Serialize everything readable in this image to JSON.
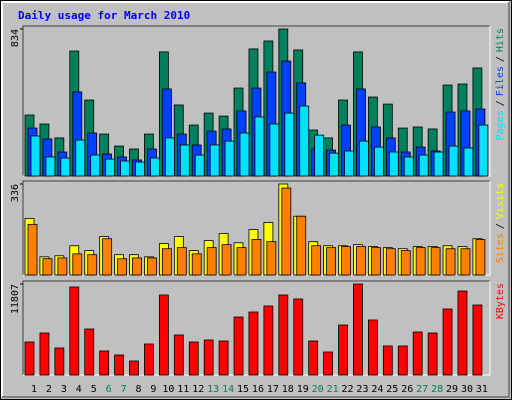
{
  "legend_separator": "/",
  "chart_data": [
    {
      "type": "bar",
      "title": "Daily usage for March 2010",
      "ylim": [
        0,
        834
      ],
      "yticks": [
        834
      ],
      "series": [
        {
          "name": "Hits",
          "color": "#00805c",
          "values": [
            346,
            295,
            216,
            709,
            431,
            238,
            170,
            153,
            238,
            704,
            403,
            289,
            357,
            340,
            499,
            721,
            766,
            834,
            715,
            261,
            216,
            431,
            704,
            448,
            408,
            272,
            278,
            267,
            516,
            522,
            613
          ]
        },
        {
          "name": "Files",
          "color": "#0040ff",
          "values": [
            272,
            210,
            136,
            477,
            244,
            125,
            108,
            91,
            153,
            494,
            238,
            176,
            255,
            267,
            369,
            499,
            590,
            652,
            528,
            153,
            147,
            289,
            494,
            278,
            216,
            136,
            164,
            142,
            363,
            369,
            380
          ]
        },
        {
          "name": "Pages",
          "color": "#00e0ff",
          "values": [
            227,
            108,
            102,
            204,
            119,
            96,
            85,
            79,
            102,
            216,
            176,
            119,
            176,
            198,
            244,
            335,
            295,
            357,
            397,
            232,
            130,
            142,
            198,
            164,
            136,
            108,
            119,
            136,
            170,
            159,
            289
          ]
        }
      ]
    },
    {
      "type": "bar",
      "ylim": [
        0,
        336
      ],
      "yticks": [
        336
      ],
      "series": [
        {
          "name": "Visits",
          "color": "#ffff00",
          "values": [
            209,
            67,
            71,
            108,
            90,
            142,
            75,
            75,
            67,
            116,
            142,
            90,
            127,
            153,
            119,
            168,
            194,
            336,
            217,
            123,
            108,
            108,
            112,
            105,
            101,
            97,
            105,
            105,
            108,
            105,
            134
          ]
        },
        {
          "name": "Sites",
          "color": "#ff8000",
          "values": [
            187,
            60,
            63,
            78,
            75,
            134,
            60,
            63,
            63,
            97,
            101,
            78,
            101,
            112,
            101,
            131,
            123,
            321,
            217,
            108,
            101,
            105,
            105,
            101,
            97,
            90,
            101,
            101,
            97,
            97,
            131
          ]
        }
      ]
    },
    {
      "type": "bar",
      "ylim": [
        0,
        11807
      ],
      "yticks": [
        11807
      ],
      "categories": [
        "1",
        "2",
        "3",
        "4",
        "5",
        "6",
        "7",
        "8",
        "9",
        "10",
        "11",
        "12",
        "13",
        "14",
        "15",
        "16",
        "17",
        "18",
        "19",
        "20",
        "21",
        "22",
        "23",
        "24",
        "25",
        "26",
        "27",
        "28",
        "29",
        "30",
        "31"
      ],
      "category_colors": [
        "#000000",
        "#000000",
        "#000000",
        "#000000",
        "#000000",
        "#00805c",
        "#00805c",
        "#000000",
        "#000000",
        "#000000",
        "#000000",
        "#000000",
        "#00805c",
        "#00805c",
        "#000000",
        "#000000",
        "#000000",
        "#000000",
        "#000000",
        "#00805c",
        "#00805c",
        "#000000",
        "#000000",
        "#000000",
        "#000000",
        "#000000",
        "#00805c",
        "#00805c",
        "#000000",
        "#000000",
        "#000000"
      ],
      "series": [
        {
          "name": "KBytes",
          "color": "#ff0000",
          "values": [
            4282,
            5449,
            3503,
            11418,
            5968,
            3114,
            2595,
            1816,
            4022,
            10380,
            5190,
            4282,
            4541,
            4411,
            7525,
            8174,
            8953,
            10380,
            9861,
            4411,
            2984,
            6487,
            11807,
            7136,
            3763,
            3763,
            5579,
            5449,
            8563,
            10899,
            9082
          ]
        }
      ]
    }
  ]
}
